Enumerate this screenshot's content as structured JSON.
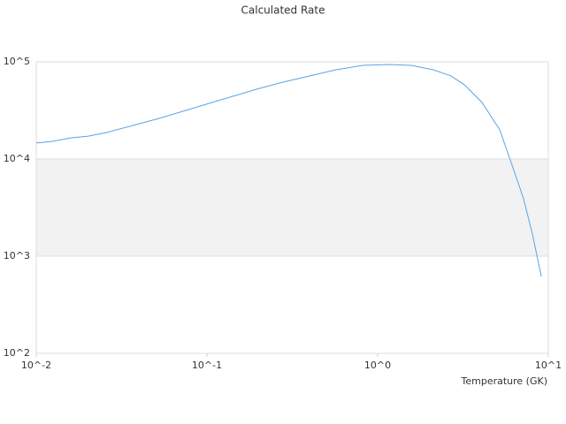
{
  "chart_data": {
    "type": "line",
    "title": "Calculated Rate",
    "x_label": "Temperature (GK)",
    "xscale": "log",
    "yscale": "log",
    "grid": true,
    "color": "#5ba3e0",
    "xlim": [
      0.01,
      10
    ],
    "ylim": [
      100,
      100000
    ],
    "xticks": [
      {
        "value": 0.01,
        "label": "10^-2"
      },
      {
        "value": 0.1,
        "label": "10^-1"
      },
      {
        "value": 1,
        "label": "10^0"
      },
      {
        "value": 10,
        "label": "10^1"
      }
    ],
    "yticks": [
      {
        "value": 100,
        "label": "10^2"
      },
      {
        "value": 1000,
        "label": "10^3"
      },
      {
        "value": 10000,
        "label": "10^4"
      },
      {
        "value": 100000,
        "label": "10^5"
      }
    ],
    "x": [
      0.01,
      0.0125,
      0.0159,
      0.0202,
      0.0257,
      0.0367,
      0.0525,
      0.0752,
      0.107,
      0.154,
      0.195,
      0.279,
      0.399,
      0.57,
      0.816,
      1.17,
      1.57,
      2.12,
      2.69,
      3.22,
      4.09,
      5.19,
      6.21,
      7.16,
      8.07,
      9.1
    ],
    "values": [
      14600,
      15200,
      16500,
      17200,
      18700,
      22100,
      26200,
      31600,
      38200,
      46100,
      52300,
      61800,
      71600,
      82800,
      92000,
      94000,
      92000,
      82800,
      71600,
      58100,
      38200,
      20000,
      8110,
      3900,
      1690,
      618
    ]
  }
}
